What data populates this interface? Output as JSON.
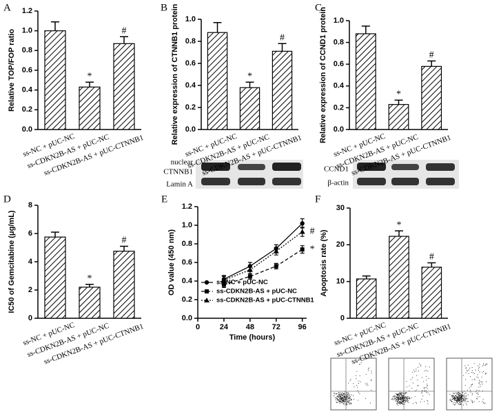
{
  "chart_data": [
    {
      "type": "bar",
      "panel": "A",
      "ylabel": "Relative TOP/FOP ratio",
      "categories": [
        "ss-NC + pUC-NC",
        "ss-CDKN2B-AS + pUC-NC",
        "ss-CDKN2B-AS + pUC-CTNNB1"
      ],
      "values": [
        1.0,
        0.43,
        0.87
      ],
      "errors": [
        0.09,
        0.05,
        0.07
      ],
      "annotations": [
        null,
        "*",
        "#"
      ],
      "ylim": [
        0,
        1.2
      ],
      "yticks": [
        {
          "value": 0,
          "label": "0.0"
        },
        {
          "value": 0.2,
          "label": "0.2"
        },
        {
          "value": 0.4,
          "label": "0.4"
        },
        {
          "value": 0.6,
          "label": "0.6"
        },
        {
          "value": 0.8,
          "label": "0.8"
        },
        {
          "value": 1,
          "label": "1.0"
        },
        {
          "value": 1.2,
          "label": "1.2"
        }
      ]
    },
    {
      "type": "bar",
      "panel": "B",
      "ylabel": "Relative expression of CTNNB1 protein",
      "categories": [
        "ss-NC + pUC-NC",
        "ss-CDKN2B-AS + pUC-NC",
        "ss-CDKN2B-AS + pUC-CTNNB1"
      ],
      "values": [
        0.88,
        0.38,
        0.71
      ],
      "errors": [
        0.09,
        0.05,
        0.07
      ],
      "annotations": [
        null,
        "*",
        "#"
      ],
      "ylim": [
        0,
        1.0
      ],
      "yticks": [
        {
          "value": 0,
          "label": "0.0"
        },
        {
          "value": 0.2,
          "label": "0.2"
        },
        {
          "value": 0.4,
          "label": "0.4"
        },
        {
          "value": 0.6,
          "label": "0.6"
        },
        {
          "value": 0.8,
          "label": "0.8"
        },
        {
          "value": 1,
          "label": "1.0"
        }
      ],
      "blot_labels": [
        "nuclear CTNNB1",
        "Lamin A"
      ]
    },
    {
      "type": "bar",
      "panel": "C",
      "ylabel": "Relative expression of CCND1 protein",
      "categories": [
        "ss-NC + pUC-NC",
        "ss-CDKN2B-AS + pUC-NC",
        "ss-CDKN2B-AS + pUC-CTNNB1"
      ],
      "values": [
        0.88,
        0.23,
        0.58
      ],
      "errors": [
        0.07,
        0.04,
        0.05
      ],
      "annotations": [
        null,
        "*",
        "#"
      ],
      "ylim": [
        0,
        1.0
      ],
      "yticks": [
        {
          "value": 0,
          "label": "0.0"
        },
        {
          "value": 0.2,
          "label": "0.2"
        },
        {
          "value": 0.4,
          "label": "0.4"
        },
        {
          "value": 0.6,
          "label": "0.6"
        },
        {
          "value": 0.8,
          "label": "0.8"
        },
        {
          "value": 1,
          "label": "1.0"
        }
      ],
      "blot_labels": [
        "CCND1",
        "β-actin"
      ]
    },
    {
      "type": "bar",
      "panel": "D",
      "ylabel": "IC50 of Gemcitabine (μg/mL)",
      "categories": [
        "ss-NC + pUC-NC",
        "ss-CDKN2B-AS + pUC-NC",
        "ss-CDKN2B-AS + pUC-CTNNB1"
      ],
      "values": [
        5.75,
        2.2,
        4.75
      ],
      "errors": [
        0.35,
        0.2,
        0.35
      ],
      "annotations": [
        null,
        "*",
        "#"
      ],
      "ylim": [
        0,
        8
      ],
      "yticks": [
        0,
        2,
        4,
        6,
        8
      ]
    },
    {
      "type": "line",
      "panel": "E",
      "ylabel": "OD value (450 nm)",
      "xlabel": "Time (hours)",
      "x": [
        24,
        48,
        72,
        96
      ],
      "xlim": [
        0,
        100
      ],
      "xticks": [
        0,
        24,
        48,
        72,
        96
      ],
      "ylim": [
        0,
        1.2
      ],
      "yticks": [
        {
          "value": 0,
          "label": "0.0"
        },
        {
          "value": 0.2,
          "label": "0.2"
        },
        {
          "value": 0.4,
          "label": "0.4"
        },
        {
          "value": 0.6,
          "label": "0.6"
        },
        {
          "value": 0.8,
          "label": "0.8"
        },
        {
          "value": 1,
          "label": "1.0"
        },
        {
          "value": 1.2,
          "label": "1.2"
        }
      ],
      "series": [
        {
          "name": "ss-NC + pUC-NC",
          "marker": "circle",
          "dash": "solid",
          "values": [
            0.42,
            0.56,
            0.75,
            1.02
          ],
          "errors": [
            0.04,
            0.04,
            0.04,
            0.05
          ],
          "annotation": null
        },
        {
          "name": "ss-CDKN2B-AS  + pUC-NC",
          "marker": "square",
          "dash": "dashed",
          "values": [
            0.36,
            0.45,
            0.56,
            0.74
          ],
          "errors": [
            0.03,
            0.03,
            0.03,
            0.04
          ],
          "annotation": "*"
        },
        {
          "name": "ss-CDKN2B-AS  + pUC-CTNNB1",
          "marker": "triangle",
          "dash": "dotted",
          "values": [
            0.41,
            0.52,
            0.72,
            0.93
          ],
          "errors": [
            0.04,
            0.04,
            0.04,
            0.05
          ],
          "annotation": "#"
        }
      ]
    },
    {
      "type": "bar",
      "panel": "F",
      "ylabel": "Apoptosis rate (%)",
      "categories": [
        "ss-NC + pUC-NC",
        "ss-CDKN2B-AS + pUC-NC",
        "ss-CDKN2B-AS + pUC-CTNNB1"
      ],
      "values": [
        10.7,
        22.3,
        13.9
      ],
      "errors": [
        0.8,
        1.5,
        1.2
      ],
      "annotations": [
        null,
        "*",
        "#"
      ],
      "ylim": [
        0,
        30
      ],
      "yticks": [
        0,
        10,
        20,
        30
      ]
    }
  ]
}
